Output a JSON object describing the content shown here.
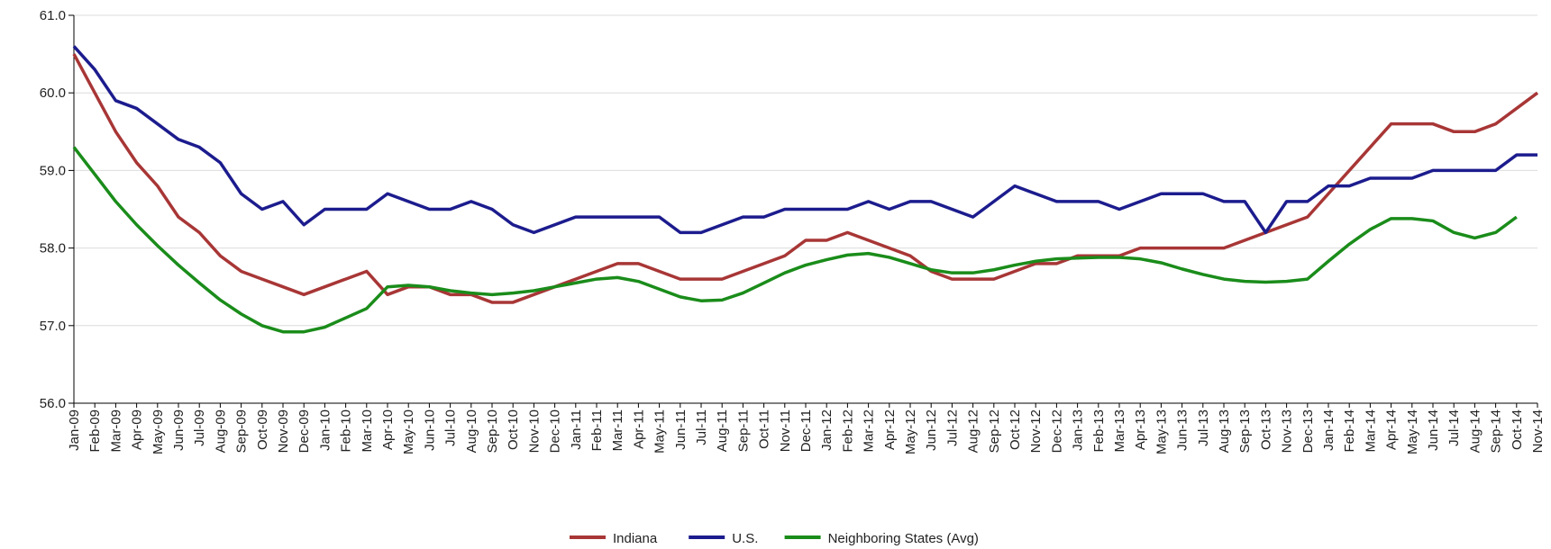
{
  "chart_data": {
    "type": "line",
    "categories": [
      "Jan-09",
      "Feb-09",
      "Mar-09",
      "Apr-09",
      "May-09",
      "Jun-09",
      "Jul-09",
      "Aug-09",
      "Sep-09",
      "Oct-09",
      "Nov-09",
      "Dec-09",
      "Jan-10",
      "Feb-10",
      "Mar-10",
      "Apr-10",
      "May-10",
      "Jun-10",
      "Jul-10",
      "Aug-10",
      "Sep-10",
      "Oct-10",
      "Nov-10",
      "Dec-10",
      "Jan-11",
      "Feb-11",
      "Mar-11",
      "Apr-11",
      "May-11",
      "Jun-11",
      "Jul-11",
      "Aug-11",
      "Sep-11",
      "Oct-11",
      "Nov-11",
      "Dec-11",
      "Jan-12",
      "Feb-12",
      "Mar-12",
      "Apr-12",
      "May-12",
      "Jun-12",
      "Jul-12",
      "Aug-12",
      "Sep-12",
      "Oct-12",
      "Nov-12",
      "Dec-12",
      "Jan-13",
      "Feb-13",
      "Mar-13",
      "Apr-13",
      "May-13",
      "Jun-13",
      "Jul-13",
      "Aug-13",
      "Sep-13",
      "Oct-13",
      "Nov-13",
      "Dec-13",
      "Jan-14",
      "Feb-14",
      "Mar-14",
      "Apr-14",
      "May-14",
      "Jun-14",
      "Jul-14",
      "Aug-14",
      "Sep-14",
      "Oct-14",
      "Nov-14"
    ],
    "series": [
      {
        "name": "Indiana",
        "color": "#a83636",
        "values": [
          60.5,
          60.0,
          59.5,
          59.1,
          58.8,
          58.4,
          58.2,
          57.9,
          57.7,
          57.6,
          57.5,
          57.4,
          57.5,
          57.6,
          57.7,
          57.4,
          57.5,
          57.5,
          57.4,
          57.4,
          57.3,
          57.3,
          57.4,
          57.5,
          57.6,
          57.7,
          57.8,
          57.8,
          57.7,
          57.6,
          57.6,
          57.6,
          57.7,
          57.8,
          57.9,
          58.1,
          58.1,
          58.2,
          58.1,
          58.0,
          57.9,
          57.7,
          57.6,
          57.6,
          57.6,
          57.7,
          57.8,
          57.8,
          57.9,
          57.9,
          57.9,
          58.0,
          58.0,
          58.0,
          58.0,
          58.0,
          58.1,
          58.2,
          58.3,
          58.4,
          58.7,
          59.0,
          59.3,
          59.6,
          59.6,
          59.6,
          59.5,
          59.5,
          59.6,
          59.8,
          60.0
        ]
      },
      {
        "name": "U.S.",
        "color": "#1c1c8e",
        "values": [
          60.6,
          60.3,
          59.9,
          59.8,
          59.6,
          59.4,
          59.3,
          59.1,
          58.7,
          58.5,
          58.6,
          58.3,
          58.5,
          58.5,
          58.5,
          58.7,
          58.6,
          58.5,
          58.5,
          58.6,
          58.5,
          58.3,
          58.2,
          58.3,
          58.4,
          58.4,
          58.4,
          58.4,
          58.4,
          58.2,
          58.2,
          58.3,
          58.4,
          58.4,
          58.5,
          58.5,
          58.5,
          58.5,
          58.6,
          58.5,
          58.6,
          58.6,
          58.5,
          58.4,
          58.6,
          58.8,
          58.7,
          58.6,
          58.6,
          58.6,
          58.5,
          58.6,
          58.7,
          58.7,
          58.7,
          58.6,
          58.6,
          58.2,
          58.6,
          58.6,
          58.8,
          58.8,
          58.9,
          58.9,
          58.9,
          59.0,
          59.0,
          59.0,
          59.0,
          59.2,
          59.2
        ]
      },
      {
        "name": "Neighboring States (Avg)",
        "color": "#1a8c1a",
        "values": [
          59.3,
          58.95,
          58.6,
          58.3,
          58.03,
          57.78,
          57.55,
          57.33,
          57.15,
          57.0,
          56.92,
          56.92,
          56.98,
          57.1,
          57.22,
          57.5,
          57.52,
          57.5,
          57.45,
          57.42,
          57.4,
          57.42,
          57.45,
          57.5,
          57.55,
          57.6,
          57.62,
          57.57,
          57.47,
          57.37,
          57.32,
          57.33,
          57.42,
          57.55,
          57.68,
          57.78,
          57.85,
          57.91,
          57.93,
          57.88,
          57.8,
          57.72,
          57.68,
          57.68,
          57.72,
          57.78,
          57.83,
          57.86,
          57.87,
          57.88,
          57.88,
          57.86,
          57.81,
          57.73,
          57.66,
          57.6,
          57.57,
          57.56,
          57.57,
          57.6,
          57.83,
          58.05,
          58.24,
          58.38,
          58.38,
          58.35,
          58.2,
          58.13,
          58.2,
          58.4,
          null
        ]
      }
    ],
    "ylim": [
      56,
      61
    ],
    "yticks": [
      {
        "value": 56,
        "label": "56.0"
      },
      {
        "value": 57,
        "label": "57.0"
      },
      {
        "value": 58,
        "label": "58.0"
      },
      {
        "value": 59,
        "label": "59.0"
      },
      {
        "value": 60,
        "label": "60.0"
      },
      {
        "value": 61,
        "label": "61.0"
      }
    ],
    "grid": true,
    "legend": "bottom"
  }
}
